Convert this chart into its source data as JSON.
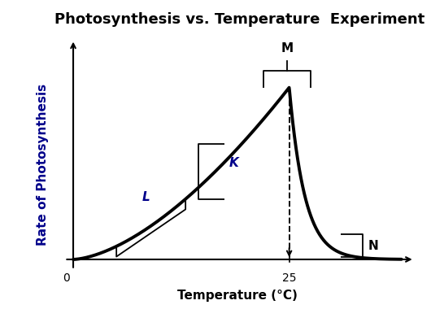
{
  "title": "Photosynthesis vs. Temperature  Experiment",
  "xlabel": "Temperature (°C)",
  "ylabel": "Rate of Photosynthesis",
  "background_color": "#ffffff",
  "curve_color": "#000000",
  "curve_linewidth": 2.8,
  "dashed_line_color": "#000000",
  "label_L": "L",
  "label_K": "K",
  "label_M": "M",
  "label_N": "N",
  "title_fontsize": 13,
  "axis_label_fontsize": 11,
  "annotation_fontsize": 11,
  "ylabel_color": "#00008B",
  "label_LK_color": "#00008B",
  "label_MN_color": "#000000"
}
